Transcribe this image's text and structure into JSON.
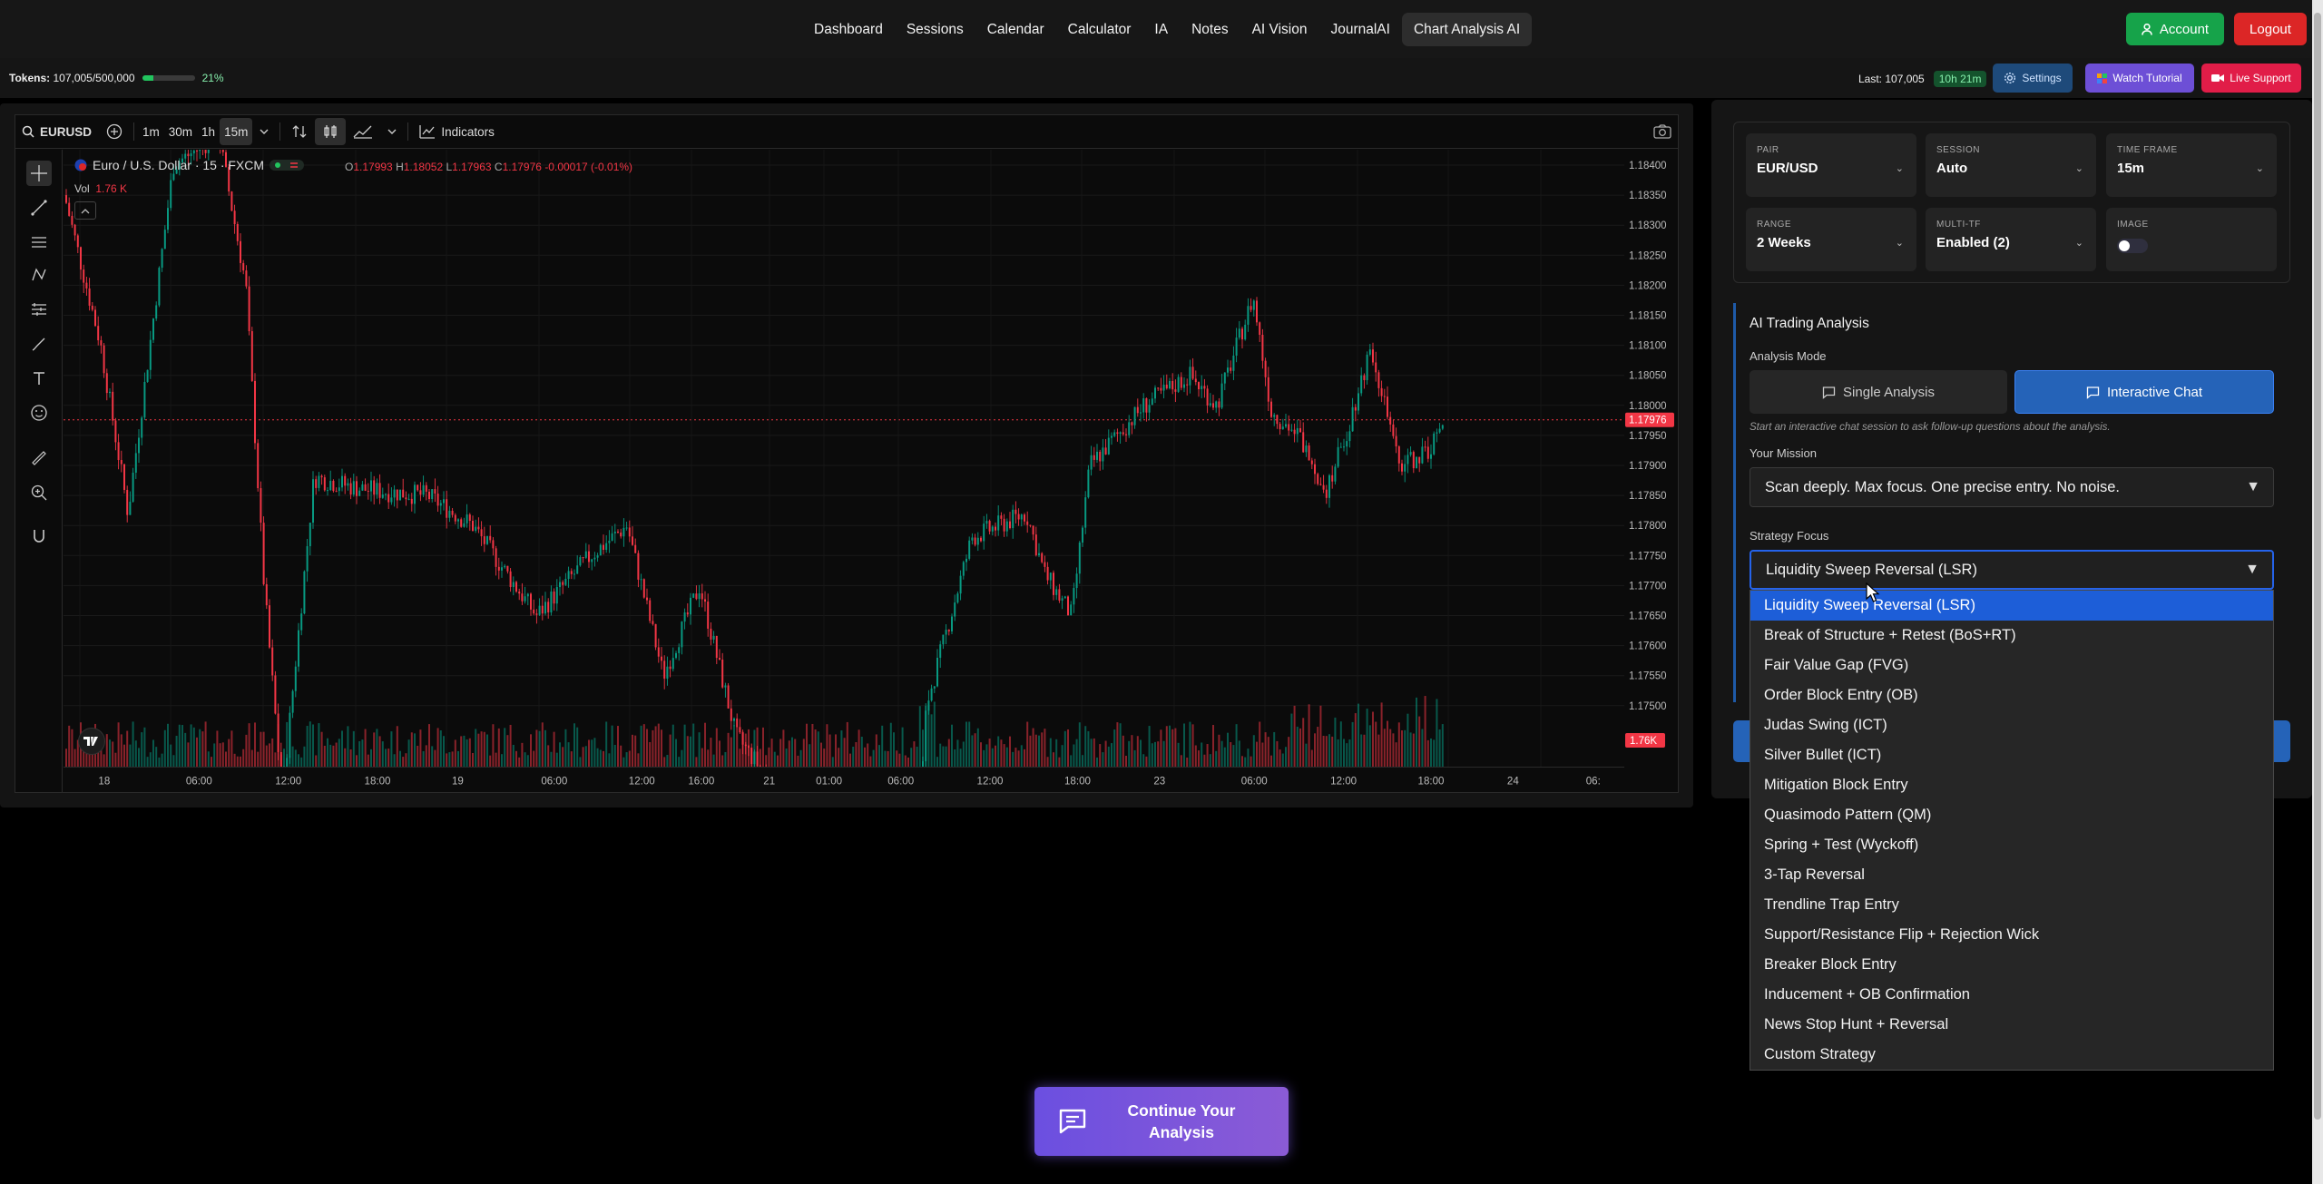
{
  "nav": {
    "links": [
      "Dashboard",
      "Sessions",
      "Calendar",
      "Calculator",
      "IA",
      "Notes",
      "AI Vision",
      "JournalAI",
      "Chart Analysis AI"
    ],
    "active": "Chart Analysis AI",
    "account_label": "Account",
    "logout_label": "Logout"
  },
  "subbar": {
    "tokens_label": "Tokens:",
    "tokens_value": "107,005/500,000",
    "tokens_pct": "21%",
    "tokens_fraction": 0.21,
    "last_label": "Last: 107,005",
    "timer": "10h 21m",
    "settings_label": "Settings",
    "tutorial_label": "Watch Tutorial",
    "support_label": "Live Support"
  },
  "chart": {
    "symbol": "EURUSD",
    "intervals": [
      "1m",
      "30m",
      "1h",
      "15m"
    ],
    "active_interval": "15m",
    "indicators_label": "Indicators",
    "title": "Euro / U.S. Dollar · 15 · FXCM",
    "ohlc": {
      "o_label": "O",
      "o": "1.17993",
      "h_label": "H",
      "h": "1.18052",
      "l_label": "L",
      "l": "1.17963",
      "c_label": "C",
      "c": "1.17976",
      "change": "-0.00017 (-0.01%)"
    },
    "vol_label": "Vol",
    "vol_value": "1.76 K",
    "price_ticks": [
      "1.18400",
      "1.18350",
      "1.18300",
      "1.18250",
      "1.18200",
      "1.18150",
      "1.18100",
      "1.18050",
      "1.18000",
      "1.17950",
      "1.17900",
      "1.17850",
      "1.17800",
      "1.17750",
      "1.17700",
      "1.17650",
      "1.17600",
      "1.17550",
      "1.17500"
    ],
    "last_price": "1.17976",
    "last_volume": "1.76K",
    "time_ticks": [
      "18",
      "06:00",
      "12:00",
      "18:00",
      "19",
      "06:00",
      "12:00",
      "16:00",
      "21",
      "01:00",
      "06:00",
      "12:00",
      "18:00",
      "23",
      "06:00",
      "12:00",
      "18:00",
      "24",
      "06:"
    ]
  },
  "config": {
    "pair": {
      "label": "PAIR",
      "value": "EUR/USD"
    },
    "session": {
      "label": "SESSION",
      "value": "Auto"
    },
    "timeframe": {
      "label": "TIME FRAME",
      "value": "15m"
    },
    "range": {
      "label": "RANGE",
      "value": "2 Weeks"
    },
    "multitf": {
      "label": "MULTI-TF",
      "value": "Enabled (2)"
    },
    "image": {
      "label": "IMAGE",
      "enabled": false
    }
  },
  "ai": {
    "title": "AI Trading Analysis",
    "mode_label": "Analysis Mode",
    "single_label": "Single Analysis",
    "interactive_label": "Interactive Chat",
    "hint": "Start an interactive chat session to ask follow-up questions about the analysis.",
    "mission_label": "Your Mission",
    "mission_value": "Scan deeply. Max focus. One precise entry. No noise.",
    "strategy_label": "Strategy Focus",
    "strategy_value": "Liquidity Sweep Reversal (LSR)",
    "strategy_options": [
      "Liquidity Sweep Reversal (LSR)",
      "Break of Structure + Retest (BoS+RT)",
      "Fair Value Gap (FVG)",
      "Order Block Entry (OB)",
      "Judas Swing (ICT)",
      "Silver Bullet (ICT)",
      "Mitigation Block Entry",
      "Quasimodo Pattern (QM)",
      "Spring + Test (Wyckoff)",
      "3-Tap Reversal",
      "Trendline Trap Entry",
      "Support/Resistance Flip + Rejection Wick",
      "Breaker Block Entry",
      "Inducement + OB Confirmation",
      "News Stop Hunt + Reversal",
      "Custom Strategy"
    ]
  },
  "continue_label_1": "Continue Your",
  "continue_label_2": "Analysis",
  "colors": {
    "up": "#089981",
    "down": "#f23645",
    "accent": "#2563eb",
    "purple": "#7c5cf0"
  }
}
